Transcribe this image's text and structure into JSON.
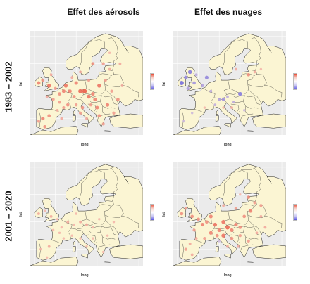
{
  "titles": {
    "col1": "Effet des aérosols",
    "col2": "Effet des nuages",
    "row1": "1983 – 2002",
    "row2": "2001 – 2020"
  },
  "axes": {
    "xlabel": "long",
    "ylabel": "lat"
  },
  "colors": {
    "land": "#fbf5d3",
    "border": "#222222",
    "panel_bg": "#ebebeb",
    "grid": "#ffffff",
    "positive": "#e8503a",
    "negative": "#5b56e0",
    "neutral": "#f6e6de"
  },
  "chart_data": [
    {
      "type": "scatter",
      "panel": "aerosols-1983-2002",
      "xlabel": "long",
      "ylabel": "lat",
      "xlim": [
        -12,
        42
      ],
      "ylim": [
        34,
        72
      ],
      "points": [
        [
          -8,
          53,
          0.6
        ],
        [
          -6,
          54,
          0.5
        ],
        [
          -3,
          52,
          0.7
        ],
        [
          0,
          51,
          0.4
        ],
        [
          -2,
          56,
          0.3
        ],
        [
          2,
          49,
          0.5
        ],
        [
          4,
          50,
          0.6
        ],
        [
          5,
          52,
          0.7
        ],
        [
          7,
          50,
          0.6
        ],
        [
          9,
          48,
          0.5
        ],
        [
          12,
          50,
          0.8
        ],
        [
          14,
          50,
          0.9
        ],
        [
          16,
          48,
          0.7
        ],
        [
          18,
          49,
          0.6
        ],
        [
          21,
          52,
          0.7
        ],
        [
          24,
          54,
          0.4
        ],
        [
          26,
          58,
          0.3
        ],
        [
          19,
          47,
          0.6
        ],
        [
          17,
          45,
          0.4
        ],
        [
          13,
          44,
          0.5
        ],
        [
          10,
          45,
          0.4
        ],
        [
          6,
          45,
          0.5
        ],
        [
          4,
          44,
          0.4
        ],
        [
          1,
          43,
          0.3
        ],
        [
          -3,
          41,
          0.5
        ],
        [
          -6,
          40,
          0.6
        ],
        [
          -8,
          39,
          0.4
        ],
        [
          -5,
          37,
          0.5
        ],
        [
          3,
          40,
          0.3
        ],
        [
          12,
          42,
          0.4
        ],
        [
          15,
          40,
          0.3
        ],
        [
          21,
          41,
          0.5
        ],
        [
          23,
          38,
          0.4
        ],
        [
          28,
          42,
          0.4
        ],
        [
          25,
          45,
          0.6
        ],
        [
          30,
          47,
          0.5
        ],
        [
          27,
          50,
          0.4
        ],
        [
          31,
          60,
          0.3
        ],
        [
          23,
          60,
          0.4
        ],
        [
          18,
          60,
          0.5
        ],
        [
          12,
          57,
          0.3
        ],
        [
          10,
          53,
          0.6
        ],
        [
          8,
          55,
          0.3
        ],
        [
          -1,
          47,
          0.4
        ],
        [
          -4,
          48,
          0.3
        ],
        [
          2,
          46,
          0.4
        ],
        [
          20,
          44,
          0.6
        ],
        [
          16,
          54,
          0.4
        ],
        [
          32,
          52,
          0.3
        ],
        [
          26,
          64,
          0.2
        ]
      ]
    },
    {
      "type": "scatter",
      "panel": "nuages-1983-2002",
      "xlabel": "long",
      "ylabel": "lat",
      "xlim": [
        -12,
        42
      ],
      "ylim": [
        34,
        72
      ],
      "points": [
        [
          -8,
          53,
          -0.8
        ],
        [
          -6,
          55,
          -0.6
        ],
        [
          -4,
          57,
          -0.7
        ],
        [
          -2,
          53,
          -0.5
        ],
        [
          -5,
          51,
          -0.4
        ],
        [
          -1,
          56,
          -0.3
        ],
        [
          2,
          52,
          -0.4
        ],
        [
          4,
          55,
          -0.6
        ],
        [
          6,
          50,
          -0.3
        ],
        [
          10,
          47,
          -0.4
        ],
        [
          12,
          47,
          -0.5
        ],
        [
          14,
          48,
          -0.3
        ],
        [
          20,
          49,
          -0.7
        ],
        [
          17,
          46,
          -0.3
        ],
        [
          8,
          45,
          -0.3
        ],
        [
          3,
          44,
          0.2
        ],
        [
          -3,
          42,
          -0.2
        ],
        [
          12,
          44,
          0.2
        ],
        [
          16,
          44,
          0.3
        ],
        [
          24,
          56,
          0.5
        ],
        [
          27,
          57,
          0.3
        ],
        [
          18,
          58,
          0.3
        ],
        [
          -7,
          39,
          -0.2
        ],
        [
          22,
          43,
          -0.2
        ],
        [
          30,
          58,
          0.2
        ]
      ]
    },
    {
      "type": "scatter",
      "panel": "aerosols-2001-2020",
      "xlabel": "long",
      "ylabel": "lat",
      "xlim": [
        -12,
        42
      ],
      "ylim": [
        34,
        72
      ],
      "points": [
        [
          -8,
          53,
          0.3
        ],
        [
          -5,
          54,
          0.2
        ],
        [
          -2,
          52,
          0.3
        ],
        [
          1,
          51,
          0.2
        ],
        [
          3,
          48,
          0.2
        ],
        [
          6,
          50,
          0.3
        ],
        [
          9,
          49,
          0.2
        ],
        [
          12,
          50,
          0.3
        ],
        [
          15,
          49,
          0.3
        ],
        [
          18,
          48,
          0.2
        ],
        [
          21,
          51,
          0.2
        ],
        [
          8,
          45,
          0.2
        ],
        [
          4,
          44,
          0.2
        ],
        [
          12,
          44,
          0.2
        ],
        [
          -3,
          41,
          0.3
        ],
        [
          -7,
          40,
          0.2
        ],
        [
          -4,
          37,
          0.2
        ],
        [
          15,
          41,
          0.2
        ],
        [
          23,
          39,
          0.2
        ],
        [
          25,
          45,
          0.2
        ],
        [
          28,
          50,
          0.2
        ],
        [
          18,
          44,
          0.2
        ],
        [
          10,
          53,
          0.2
        ],
        [
          -1,
          47,
          0.2
        ],
        [
          2,
          46,
          0.2
        ]
      ]
    },
    {
      "type": "scatter",
      "panel": "nuages-2001-2020",
      "xlabel": "long",
      "ylabel": "lat",
      "xlim": [
        -12,
        42
      ],
      "ylim": [
        34,
        72
      ],
      "points": [
        [
          -8,
          53,
          0.5
        ],
        [
          -6,
          55,
          0.4
        ],
        [
          -3,
          52,
          0.5
        ],
        [
          0,
          51,
          0.5
        ],
        [
          2,
          49,
          0.6
        ],
        [
          4,
          50,
          0.5
        ],
        [
          6,
          52,
          0.6
        ],
        [
          8,
          49,
          0.7
        ],
        [
          10,
          47,
          0.6
        ],
        [
          12,
          50,
          0.7
        ],
        [
          14,
          48,
          0.8
        ],
        [
          16,
          47,
          0.6
        ],
        [
          18,
          49,
          0.6
        ],
        [
          20,
          48,
          0.5
        ],
        [
          22,
          52,
          0.5
        ],
        [
          25,
          54,
          0.6
        ],
        [
          27,
          57,
          0.4
        ],
        [
          24,
          59,
          0.5
        ],
        [
          30,
          56,
          0.4
        ],
        [
          6,
          46,
          0.6
        ],
        [
          9,
          45,
          0.5
        ],
        [
          12,
          45,
          0.7
        ],
        [
          16,
          44,
          0.5
        ],
        [
          20,
          45,
          0.4
        ],
        [
          3,
          44,
          0.4
        ],
        [
          -1,
          44,
          0.3
        ],
        [
          -4,
          42,
          0.3
        ],
        [
          -6,
          40,
          0.4
        ],
        [
          -3,
          38,
          0.3
        ],
        [
          14,
          41,
          0.3
        ],
        [
          19,
          41,
          0.3
        ],
        [
          24,
          43,
          0.4
        ],
        [
          28,
          46,
          0.3
        ],
        [
          32,
          48,
          0.3
        ],
        [
          -2,
          47,
          0.4
        ],
        [
          30,
          52,
          0.3
        ],
        [
          12,
          56,
          0.3
        ],
        [
          18,
          55,
          0.4
        ],
        [
          20,
          60,
          0.2
        ],
        [
          10,
          43,
          -0.2
        ]
      ]
    }
  ]
}
